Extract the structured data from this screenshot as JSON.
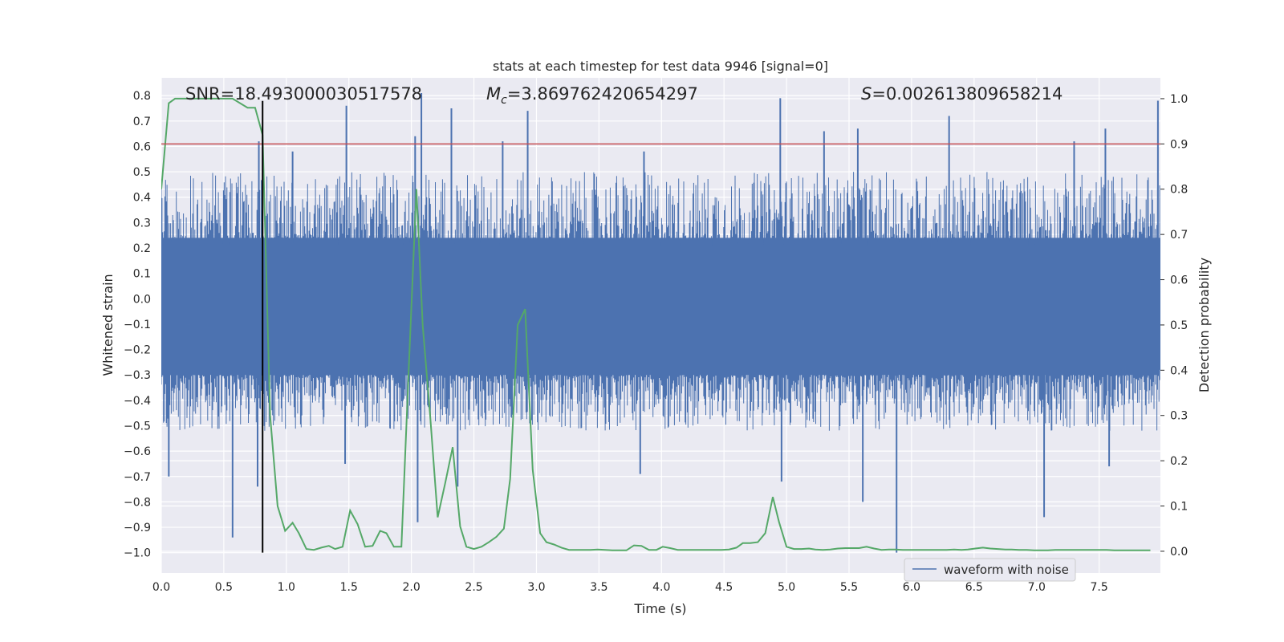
{
  "chart_data": {
    "type": "line",
    "title": "stats at each timestep for test data 9946 [signal=0]",
    "xlabel": "Time (s)",
    "ylabel_left": "Whitened strain",
    "ylabel_right": "Detection probability",
    "xlim": [
      0,
      7.99
    ],
    "ylim_left": [
      -1.08,
      0.87
    ],
    "ylim_right": [
      -0.048,
      1.046
    ],
    "x_ticks": [
      0.0,
      0.5,
      1.0,
      1.5,
      2.0,
      2.5,
      3.0,
      3.5,
      4.0,
      4.5,
      5.0,
      5.5,
      6.0,
      6.5,
      7.0,
      7.5
    ],
    "x_tick_labels": [
      "0.0",
      "0.5",
      "1.0",
      "1.5",
      "2.0",
      "2.5",
      "3.0",
      "3.5",
      "4.0",
      "4.5",
      "5.0",
      "5.5",
      "6.0",
      "6.5",
      "7.0",
      "7.5"
    ],
    "y_left_ticks": [
      0.8,
      0.7,
      0.6,
      0.5,
      0.4,
      0.3,
      0.2,
      0.1,
      0.0,
      -0.1,
      -0.2,
      -0.3,
      -0.4,
      -0.5,
      -0.6,
      -0.7,
      -0.8,
      -0.9,
      -1.0
    ],
    "y_left_tick_labels": [
      "0.8",
      "0.7",
      "0.6",
      "0.5",
      "0.4",
      "0.3",
      "0.2",
      "0.1",
      "0.0",
      "−0.1",
      "−0.2",
      "−0.3",
      "−0.4",
      "−0.5",
      "−0.6",
      "−0.7",
      "−0.8",
      "−0.9",
      "−1.0"
    ],
    "y_right_ticks": [
      1.0,
      0.9,
      0.8,
      0.7,
      0.6,
      0.5,
      0.4,
      0.3,
      0.2,
      0.1,
      0.0
    ],
    "y_right_tick_labels": [
      "1.0",
      "0.9",
      "0.8",
      "0.7",
      "0.6",
      "0.5",
      "0.4",
      "0.3",
      "0.2",
      "0.1",
      "0.0"
    ],
    "grid": true,
    "annotations": [
      {
        "text": "SNR=18.493000030517578",
        "x": 0.2,
        "y_right": 0.995
      },
      {
        "text": "=3.869762420654297",
        "math_prefix": "M",
        "math_sub": "c",
        "x": 2.6,
        "y_right": 0.995
      },
      {
        "text": "=0.002613809658214",
        "math_prefix": "S",
        "x": 5.6,
        "y_right": 0.995
      }
    ],
    "threshold_line": {
      "axis": "right",
      "y": 0.9,
      "color": "#c44e52"
    },
    "marker_line": {
      "x": 0.81,
      "y_left_from": -1.0,
      "y_right_to": 0.995,
      "color": "#000000"
    },
    "waveform": {
      "name": "waveform with noise",
      "color": "#4c72b0",
      "dense_band": [
        -0.28,
        0.24
      ],
      "typical_peak_range": [
        0.3,
        0.5
      ],
      "peaks_up": [
        {
          "x": 0.78,
          "y": 0.62
        },
        {
          "x": 1.05,
          "y": 0.58
        },
        {
          "x": 1.48,
          "y": 0.76
        },
        {
          "x": 2.03,
          "y": 0.64
        },
        {
          "x": 2.08,
          "y": 0.81
        },
        {
          "x": 2.32,
          "y": 0.75
        },
        {
          "x": 2.73,
          "y": 0.62
        },
        {
          "x": 2.93,
          "y": 0.74
        },
        {
          "x": 3.86,
          "y": 0.58
        },
        {
          "x": 4.95,
          "y": 0.79
        },
        {
          "x": 5.3,
          "y": 0.66
        },
        {
          "x": 5.57,
          "y": 0.67
        },
        {
          "x": 6.3,
          "y": 0.72
        },
        {
          "x": 7.3,
          "y": 0.62
        },
        {
          "x": 7.55,
          "y": 0.67
        },
        {
          "x": 7.97,
          "y": 0.78
        }
      ],
      "peaks_down": [
        {
          "x": 0.06,
          "y": -0.7
        },
        {
          "x": 0.57,
          "y": -0.94
        },
        {
          "x": 0.77,
          "y": -0.74
        },
        {
          "x": 1.47,
          "y": -0.65
        },
        {
          "x": 2.05,
          "y": -0.88
        },
        {
          "x": 2.37,
          "y": -0.74
        },
        {
          "x": 3.83,
          "y": -0.69
        },
        {
          "x": 4.96,
          "y": -0.72
        },
        {
          "x": 5.61,
          "y": -0.8
        },
        {
          "x": 5.88,
          "y": -1.0
        },
        {
          "x": 7.06,
          "y": -0.86
        },
        {
          "x": 7.58,
          "y": -0.66
        }
      ]
    },
    "probability_series": {
      "color": "#55a868",
      "x": [
        0.0,
        0.06,
        0.11,
        0.17,
        0.23,
        0.29,
        0.34,
        0.4,
        0.46,
        0.52,
        0.57,
        0.63,
        0.69,
        0.75,
        0.81,
        0.87,
        0.93,
        0.99,
        1.05,
        1.1,
        1.16,
        1.22,
        1.28,
        1.34,
        1.39,
        1.45,
        1.51,
        1.57,
        1.63,
        1.69,
        1.75,
        1.8,
        1.86,
        1.92,
        1.98,
        2.04,
        2.09,
        2.15,
        2.21,
        2.27,
        2.33,
        2.39,
        2.44,
        2.5,
        2.56,
        2.62,
        2.68,
        2.74,
        2.79,
        2.85,
        2.91,
        2.97,
        3.03,
        3.08,
        3.14,
        3.2,
        3.26,
        3.32,
        3.37,
        3.43,
        3.49,
        3.55,
        3.61,
        3.67,
        3.72,
        3.78,
        3.84,
        3.9,
        3.96,
        4.01,
        4.07,
        4.13,
        4.19,
        4.25,
        4.3,
        4.36,
        4.42,
        4.48,
        4.54,
        4.6,
        4.65,
        4.71,
        4.77,
        4.83,
        4.89,
        4.94,
        5.0,
        5.06,
        5.12,
        5.18,
        5.23,
        5.29,
        5.35,
        5.41,
        5.47,
        5.52,
        5.58,
        5.64,
        5.7,
        5.76,
        5.82,
        5.87,
        5.93,
        5.99,
        6.05,
        6.11,
        6.16,
        6.22,
        6.28,
        6.34,
        6.4,
        6.45,
        6.51,
        6.57,
        6.63,
        6.69,
        6.75,
        6.8,
        6.86,
        6.92,
        6.98,
        7.04,
        7.09,
        7.15,
        7.21,
        7.27,
        7.33,
        7.38,
        7.44,
        7.5,
        7.56,
        7.62,
        7.67,
        7.73,
        7.79,
        7.85,
        7.91
      ],
      "y": [
        0.8,
        0.99,
        1.0,
        1.0,
        1.0,
        1.0,
        1.0,
        1.0,
        1.0,
        1.0,
        1.0,
        0.99,
        0.98,
        0.98,
        0.92,
        0.3,
        0.1,
        0.045,
        0.063,
        0.04,
        0.005,
        0.003,
        0.008,
        0.012,
        0.005,
        0.01,
        0.09,
        0.06,
        0.01,
        0.012,
        0.045,
        0.04,
        0.01,
        0.01,
        0.41,
        0.8,
        0.5,
        0.3,
        0.075,
        0.15,
        0.23,
        0.055,
        0.01,
        0.005,
        0.01,
        0.02,
        0.032,
        0.05,
        0.16,
        0.5,
        0.535,
        0.18,
        0.04,
        0.02,
        0.015,
        0.008,
        0.003,
        0.003,
        0.003,
        0.003,
        0.004,
        0.003,
        0.002,
        0.002,
        0.002,
        0.013,
        0.012,
        0.003,
        0.003,
        0.01,
        0.007,
        0.003,
        0.003,
        0.003,
        0.003,
        0.003,
        0.003,
        0.003,
        0.004,
        0.008,
        0.018,
        0.018,
        0.02,
        0.04,
        0.12,
        0.065,
        0.01,
        0.005,
        0.005,
        0.006,
        0.004,
        0.003,
        0.004,
        0.006,
        0.007,
        0.007,
        0.007,
        0.01,
        0.006,
        0.003,
        0.004,
        0.004,
        0.003,
        0.003,
        0.003,
        0.003,
        0.003,
        0.003,
        0.003,
        0.004,
        0.003,
        0.004,
        0.006,
        0.008,
        0.006,
        0.005,
        0.004,
        0.004,
        0.003,
        0.003,
        0.002,
        0.002,
        0.002,
        0.003,
        0.003,
        0.003,
        0.003,
        0.003,
        0.003,
        0.003,
        0.003,
        0.002,
        0.002,
        0.002,
        0.002,
        0.002,
        0.002
      ]
    },
    "legend": {
      "placement": "lower-right",
      "entries": [
        "waveform with noise"
      ]
    }
  }
}
